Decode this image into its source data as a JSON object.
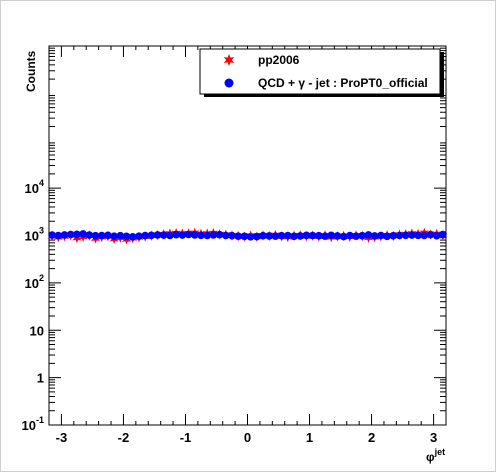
{
  "chart_data": {
    "type": "scatter",
    "ylabel": "Counts",
    "xlabel_base": "φ",
    "xlabel_sup": "jet",
    "xlim": [
      -3.2,
      3.2
    ],
    "ylim": [
      0.1,
      10000000
    ],
    "yscale": "log",
    "x_ticks": [
      -3,
      -2,
      -1,
      0,
      1,
      2,
      3
    ],
    "x_tick_labels": [
      "-3",
      "-2",
      "-1",
      "0",
      "1",
      "2",
      "3"
    ],
    "y_ticks": [
      {
        "value": 0.1,
        "label": "10",
        "sup": "-1"
      },
      {
        "value": 1,
        "label": "1",
        "sup": ""
      },
      {
        "value": 10,
        "label": "10",
        "sup": ""
      },
      {
        "value": 100,
        "label": "10",
        "sup": "2"
      },
      {
        "value": 1000,
        "label": "10",
        "sup": "3"
      },
      {
        "value": 10000,
        "label": "10",
        "sup": "4"
      }
    ],
    "legend": {
      "position": "top-right",
      "entries": [
        {
          "label": "pp2006",
          "color": "#ff0000",
          "marker": "star"
        },
        {
          "label": "QCD + γ - jet : ProPT0_official",
          "color": "#0000ff",
          "marker": "circle"
        }
      ]
    },
    "grid": false,
    "series": [
      {
        "name": "pp2006",
        "color": "#ff0000",
        "marker": "star",
        "x": [
          -3.15,
          -3.05,
          -2.95,
          -2.85,
          -2.75,
          -2.65,
          -2.55,
          -2.45,
          -2.35,
          -2.25,
          -2.15,
          -2.05,
          -1.95,
          -1.85,
          -1.75,
          -1.65,
          -1.55,
          -1.45,
          -1.35,
          -1.25,
          -1.15,
          -1.05,
          -0.95,
          -0.85,
          -0.75,
          -0.65,
          -0.55,
          -0.45,
          -0.35,
          -0.25,
          -0.15,
          -0.05,
          0.05,
          0.15,
          0.25,
          0.35,
          0.45,
          0.55,
          0.65,
          0.75,
          0.85,
          0.95,
          1.05,
          1.15,
          1.25,
          1.35,
          1.45,
          1.55,
          1.65,
          1.75,
          1.85,
          1.95,
          2.05,
          2.15,
          2.25,
          2.35,
          2.45,
          2.55,
          2.65,
          2.75,
          2.85,
          2.95,
          3.05,
          3.15
        ],
        "y": [
          980,
          920,
          960,
          1010,
          890,
          940,
          1000,
          870,
          930,
          960,
          850,
          900,
          830,
          880,
          920,
          950,
          990,
          1020,
          1060,
          1100,
          1120,
          1090,
          1110,
          1130,
          1080,
          1100,
          1120,
          1060,
          1040,
          1000,
          970,
          950,
          990,
          940,
          1000,
          980,
          1020,
          960,
          930,
          990,
          1010,
          960,
          990,
          950,
          1000,
          920,
          960,
          980,
          940,
          1000,
          970,
          900,
          930,
          960,
          1010,
          980,
          1040,
          1060,
          1100,
          1080,
          1130,
          1050,
          1080,
          1000
        ]
      },
      {
        "name": "QCD + γ - jet : ProPT0_official",
        "color": "#0000ff",
        "marker": "circle",
        "x": [
          -3.15,
          -3.05,
          -2.95,
          -2.85,
          -2.75,
          -2.65,
          -2.55,
          -2.45,
          -2.35,
          -2.25,
          -2.15,
          -2.05,
          -1.95,
          -1.85,
          -1.75,
          -1.65,
          -1.55,
          -1.45,
          -1.35,
          -1.25,
          -1.15,
          -1.05,
          -0.95,
          -0.85,
          -0.75,
          -0.65,
          -0.55,
          -0.45,
          -0.35,
          -0.25,
          -0.15,
          -0.05,
          0.05,
          0.15,
          0.25,
          0.35,
          0.45,
          0.55,
          0.65,
          0.75,
          0.85,
          0.95,
          1.05,
          1.15,
          1.25,
          1.35,
          1.45,
          1.55,
          1.65,
          1.75,
          1.85,
          1.95,
          2.05,
          2.15,
          2.25,
          2.35,
          2.45,
          2.55,
          2.65,
          2.75,
          2.85,
          2.95,
          3.05,
          3.15
        ],
        "y": [
          1020,
          1000,
          1030,
          1050,
          1060,
          1080,
          1020,
          990,
          1000,
          1010,
          970,
          990,
          960,
          940,
          970,
          1000,
          1010,
          1030,
          1020,
          1000,
          1040,
          1020,
          1050,
          1030,
          1010,
          1000,
          1030,
          1040,
          1000,
          990,
          970,
          960,
          940,
          950,
          990,
          980,
          970,
          990,
          1000,
          960,
          980,
          1010,
          1000,
          990,
          970,
          1010,
          980,
          950,
          1000,
          970,
          990,
          1030,
          980,
          1000,
          960,
          990,
          1000,
          1010,
          1020,
          1010,
          1000,
          1040,
          990,
          1050
        ]
      }
    ]
  }
}
